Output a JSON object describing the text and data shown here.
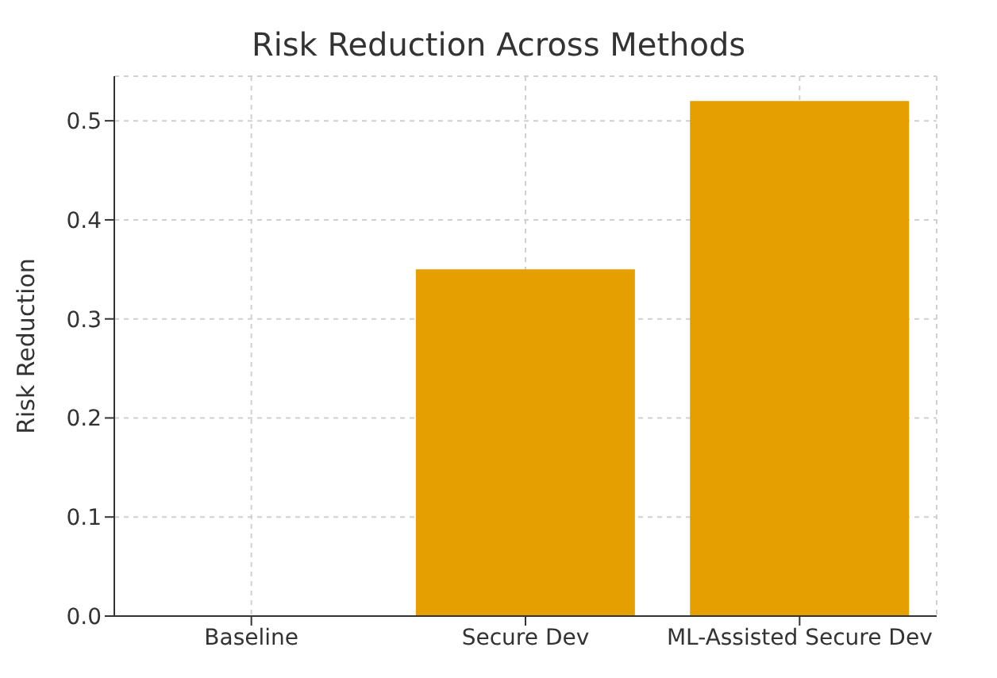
{
  "chart_data": {
    "type": "bar",
    "title": "Risk Reduction Across Methods",
    "ylabel": "Risk Reduction",
    "categories": [
      "Baseline",
      "Secure Dev",
      "ML-Assisted Secure Dev"
    ],
    "values": [
      0,
      0.35,
      0.52
    ],
    "color": "#e69f00",
    "ylim": [
      0,
      0.545
    ],
    "yticks": [
      {
        "value": 0,
        "label": "0.0"
      },
      0.1,
      0.2,
      0.3,
      0.4,
      0.5
    ],
    "grid": true
  }
}
